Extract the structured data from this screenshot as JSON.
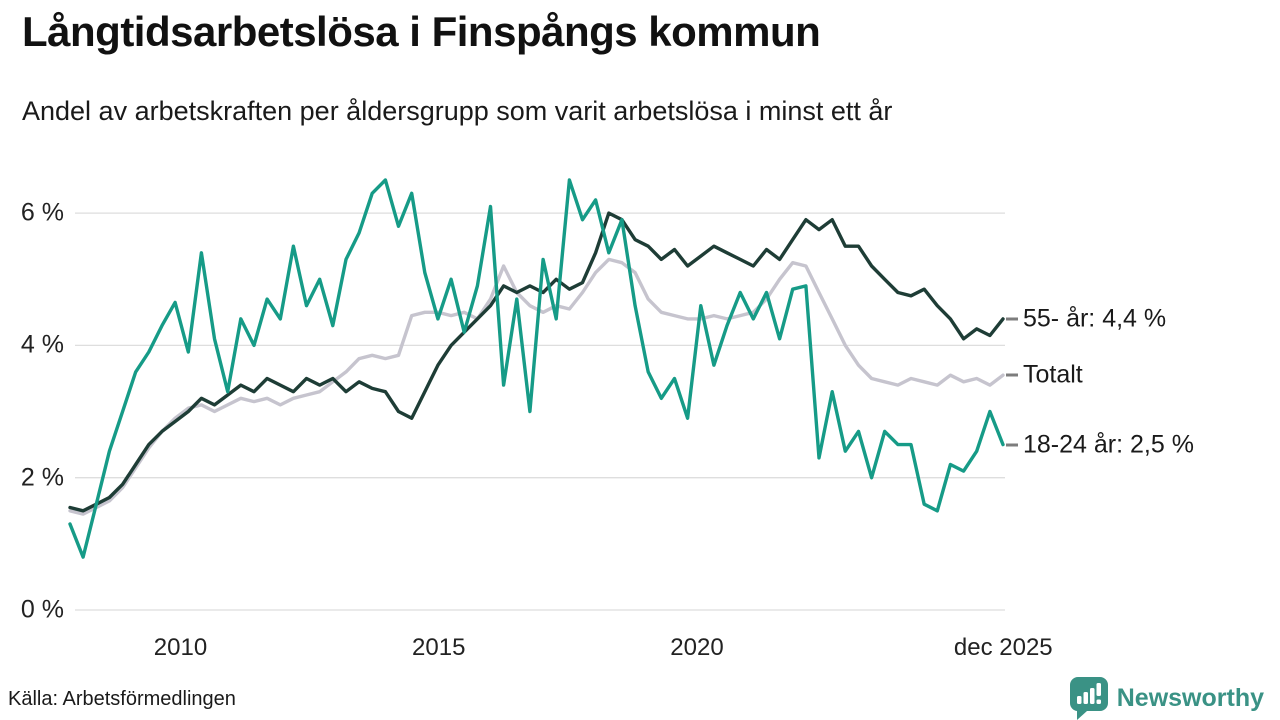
{
  "header": {
    "title": "Långtidsarbetslösa i Finspångs kommun",
    "subtitle": "Andel av arbetskraften per åldersgrupp som varit arbetslösa i minst ett år"
  },
  "chart_data": {
    "type": "line",
    "unit": "percent of labour force",
    "frequency": "quarterly",
    "x_start": "2008-Q1",
    "x_end": "2025-Q4",
    "ylim": [
      0,
      6.8
    ],
    "grid": "horizontal",
    "yticks": [
      {
        "value": 6,
        "label": "6 %"
      },
      {
        "value": 4,
        "label": "4 %"
      },
      {
        "value": 2,
        "label": "2 %"
      },
      {
        "value": 0,
        "label": "0 %"
      }
    ],
    "xticks": [
      {
        "year": 2010,
        "label": "2010"
      },
      {
        "year": 2015,
        "label": "2015"
      },
      {
        "year": 2020,
        "label": "2020"
      },
      {
        "year": 2025.93,
        "label": "dec 2025"
      }
    ],
    "legend_position": "right-end-labels",
    "series": [
      {
        "name": "Totalt",
        "end_label": "Totalt",
        "color": "#c6c4ce",
        "values": [
          1.5,
          1.45,
          1.55,
          1.65,
          1.85,
          2.15,
          2.45,
          2.7,
          2.9,
          3.05,
          3.1,
          3.0,
          3.1,
          3.2,
          3.15,
          3.2,
          3.1,
          3.2,
          3.25,
          3.3,
          3.45,
          3.6,
          3.8,
          3.85,
          3.8,
          3.85,
          4.45,
          4.5,
          4.5,
          4.45,
          4.5,
          4.4,
          4.7,
          5.2,
          4.8,
          4.6,
          4.5,
          4.6,
          4.55,
          4.8,
          5.1,
          5.3,
          5.25,
          5.1,
          4.7,
          4.5,
          4.45,
          4.4,
          4.4,
          4.45,
          4.4,
          4.45,
          4.5,
          4.7,
          5.0,
          5.25,
          5.2,
          4.8,
          4.4,
          4.0,
          3.7,
          3.5,
          3.45,
          3.4,
          3.5,
          3.45,
          3.4,
          3.55,
          3.45,
          3.5,
          3.4,
          3.55
        ]
      },
      {
        "name": "55- år",
        "end_label": "55- år: 4,4 %",
        "end_value_label": "4,4 %",
        "color": "#1e3d36",
        "values": [
          1.55,
          1.5,
          1.6,
          1.7,
          1.9,
          2.2,
          2.5,
          2.7,
          2.85,
          3.0,
          3.2,
          3.1,
          3.25,
          3.4,
          3.3,
          3.5,
          3.4,
          3.3,
          3.5,
          3.4,
          3.5,
          3.3,
          3.45,
          3.35,
          3.3,
          3.0,
          2.9,
          3.3,
          3.7,
          4.0,
          4.2,
          4.4,
          4.6,
          4.9,
          4.8,
          4.9,
          4.8,
          5.0,
          4.85,
          4.95,
          5.4,
          6.0,
          5.9,
          5.6,
          5.5,
          5.3,
          5.45,
          5.2,
          5.35,
          5.5,
          5.4,
          5.3,
          5.2,
          5.45,
          5.3,
          5.6,
          5.9,
          5.75,
          5.9,
          5.5,
          5.5,
          5.2,
          5.0,
          4.8,
          4.75,
          4.85,
          4.6,
          4.4,
          4.1,
          4.25,
          4.15,
          4.4
        ]
      },
      {
        "name": "18-24 år",
        "end_label": "18-24 år: 2,5 %",
        "end_value_label": "2,5 %",
        "color": "#169b87",
        "values": [
          1.3,
          0.8,
          1.6,
          2.4,
          3.0,
          3.6,
          3.9,
          4.3,
          4.65,
          3.9,
          5.4,
          4.1,
          3.3,
          4.4,
          4.0,
          4.7,
          4.4,
          5.5,
          4.6,
          5.0,
          4.3,
          5.3,
          5.7,
          6.3,
          6.5,
          5.8,
          6.3,
          5.1,
          4.4,
          5.0,
          4.2,
          4.9,
          6.1,
          3.4,
          4.7,
          3.0,
          5.3,
          4.4,
          6.5,
          5.9,
          6.2,
          5.4,
          5.9,
          4.6,
          3.6,
          3.2,
          3.5,
          2.9,
          4.6,
          3.7,
          4.3,
          4.8,
          4.4,
          4.8,
          4.1,
          4.85,
          4.9,
          2.3,
          3.3,
          2.4,
          2.7,
          2.0,
          2.7,
          2.5,
          2.5,
          1.6,
          1.5,
          2.2,
          2.1,
          2.4,
          3.0,
          2.5
        ]
      }
    ],
    "colors": {
      "grid": "#dedede",
      "tick_text": "#222222",
      "end_label_dash": "#7d7d7d"
    }
  },
  "footer": {
    "source": "Källa: Arbetsförmedlingen",
    "brand": "Newsworthy",
    "brand_color": "#3a9285"
  }
}
